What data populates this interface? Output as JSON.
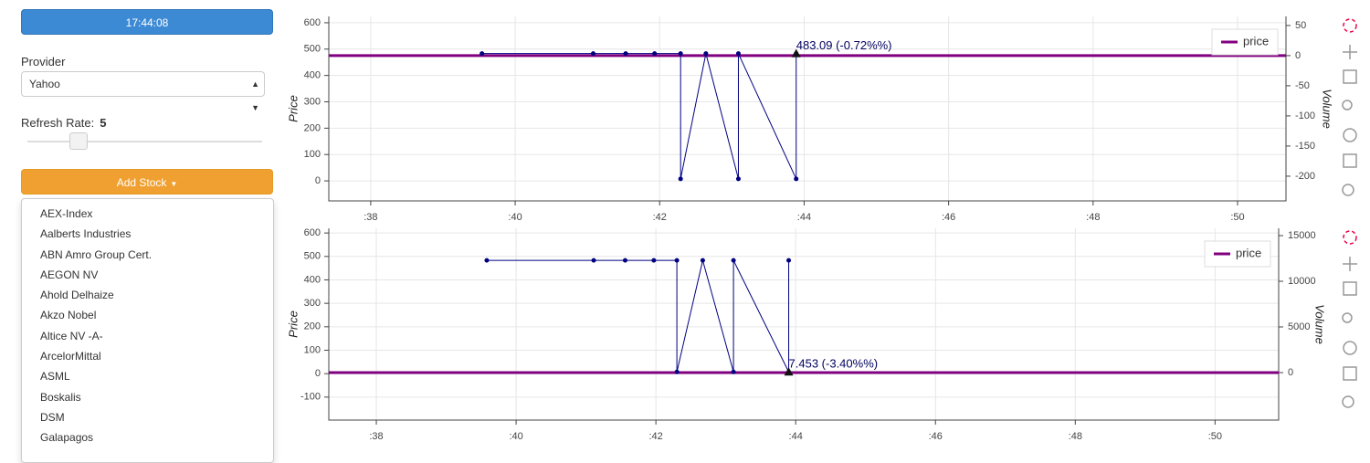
{
  "sidebar": {
    "time": "17:44:08",
    "provider_label": "Provider",
    "provider": "Yahoo",
    "refresh_label": "Refresh Rate:",
    "refresh_rate": 5,
    "add_button": "Add Stock",
    "stocks": [
      "AEX-Index",
      "Aalberts Industries",
      "ABN Amro Group Cert.",
      "AEGON NV",
      "Ahold Delhaize",
      "Akzo Nobel",
      "Altice NV -A-",
      "ArcelorMittal",
      "ASML",
      "Boskalis",
      "DSM",
      "Galapagos"
    ]
  },
  "chart_data": [
    {
      "type": "line",
      "y_label": "Price",
      "y2_label": "Volume",
      "xlim": [
        37.42,
        50.67
      ],
      "xticks": [
        {
          "value": 38,
          "label": ":38"
        },
        {
          "value": 40,
          "label": ":40"
        },
        {
          "value": 42,
          "label": ":42"
        },
        {
          "value": 44,
          "label": ":44"
        },
        {
          "value": 46,
          "label": ":46"
        },
        {
          "value": 48,
          "label": ":48"
        },
        {
          "value": 50,
          "label": ":50"
        }
      ],
      "ylim": [
        -76,
        624
      ],
      "yticks": [
        0,
        100,
        200,
        300,
        400,
        500,
        600
      ],
      "y2lim": [
        -241,
        65
      ],
      "y2ticks": [
        50,
        0,
        -50,
        -100,
        -150,
        -200
      ],
      "grid": true,
      "legend": "top-right",
      "series": [
        {
          "name": "price",
          "color": "#800080",
          "axis": "y2",
          "x": [
            37.42,
            50.67
          ],
          "values": [
            0,
            0
          ]
        },
        {
          "color": "#000080",
          "markers": true,
          "x": [
            39.54,
            41.08,
            41.53,
            41.93,
            42.29,
            42.29,
            42.64,
            43.09,
            43.09,
            43.89,
            43.89
          ],
          "values": [
            483.09,
            483.09,
            483.09,
            483.09,
            483.09,
            7.453,
            483.09,
            7.453,
            483.09,
            7.453,
            483.09
          ]
        }
      ],
      "annotation": {
        "text": "483.09 (-0.72%%)",
        "x": 43.89,
        "y": 483.09
      }
    },
    {
      "type": "line",
      "y_label": "Price",
      "y2_label": "Volume",
      "xlim": [
        37.32,
        50.91
      ],
      "xticks": [
        {
          "value": 38,
          "label": ":38"
        },
        {
          "value": 40,
          "label": ":40"
        },
        {
          "value": 42,
          "label": ":42"
        },
        {
          "value": 44,
          "label": ":44"
        },
        {
          "value": 46,
          "label": ":46"
        },
        {
          "value": 48,
          "label": ":48"
        },
        {
          "value": 50,
          "label": ":50"
        }
      ],
      "ylim": [
        -198,
        620
      ],
      "yticks": [
        -100,
        0,
        100,
        200,
        300,
        400,
        500,
        600
      ],
      "y2lim": [
        -5200,
        15800
      ],
      "y2ticks": [
        0,
        5000,
        10000,
        15000
      ],
      "grid": true,
      "legend": "top-right",
      "series": [
        {
          "name": "price",
          "color": "#800080",
          "axis": "y2",
          "x": [
            37.32,
            50.91
          ],
          "values": [
            0,
            0
          ]
        },
        {
          "color": "#000080",
          "markers": true,
          "x": [
            39.58,
            41.11,
            41.56,
            41.97,
            42.3,
            42.3,
            42.67,
            43.11,
            43.11,
            43.9,
            43.9
          ],
          "values": [
            483.09,
            483.09,
            483.09,
            483.09,
            483.09,
            7.453,
            483.09,
            7.453,
            483.09,
            7.453,
            483.09
          ]
        }
      ],
      "annotation": {
        "text": "7.453 (-3.40%%)",
        "x": 43.9,
        "y": 7.453
      }
    }
  ]
}
